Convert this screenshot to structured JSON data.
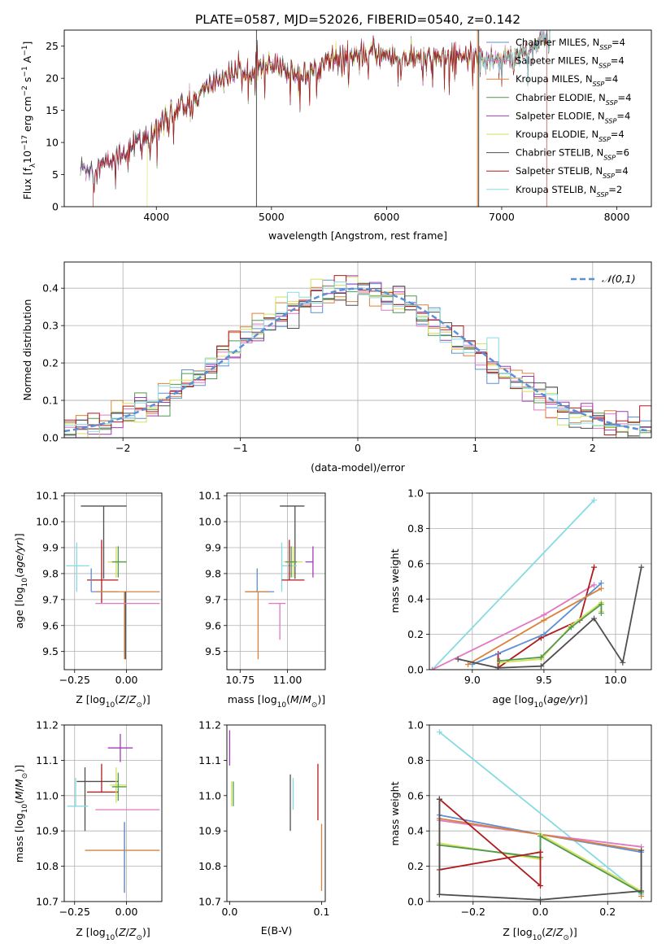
{
  "figure_title": "PLATE=0587, MJD=52026, FIBERID=0540, z=0.142",
  "palette": {
    "chabrier_miles": "#5b8fd6",
    "salpeter_miles": "#e377c2",
    "kroupa_miles": "#d9823b",
    "chabrier_elodie": "#4f9a4f",
    "salpeter_elodie": "#a03bb8",
    "kroupa_elodie": "#d6e05a",
    "chabrier_stelib": "#4f4f4f",
    "salpeter_stelib": "#b01c1c",
    "kroupa_stelib": "#85dbe3",
    "normal_curve": "#5b8fd6"
  },
  "chart_data": [
    {
      "type": "line",
      "id": "spectrum",
      "xlabel": "wavelength [Angstrom, rest frame]",
      "ylabel": "Flux [f_λ10^-17 erg cm^-2 s^-1 A^-1]",
      "xlim": [
        3200,
        8300
      ],
      "ylim": [
        0,
        27.5
      ],
      "xticks": [
        4000,
        5000,
        6000,
        7000,
        8000
      ],
      "yticks": [
        0,
        5,
        10,
        15,
        20,
        25
      ],
      "grid": false,
      "legend_position": "right",
      "series": [
        {
          "name": "Chabrier MILES, N_SSP=4",
          "key": "chabrier_miles"
        },
        {
          "name": "Salpeter MILES, N_SSP=4",
          "key": "salpeter_miles"
        },
        {
          "name": "Kroupa MILES, N_SSP=4",
          "key": "kroupa_miles"
        },
        {
          "name": "Chabrier ELODIE, N_SSP=4",
          "key": "chabrier_elodie"
        },
        {
          "name": "Salpeter ELODIE, N_SSP=4",
          "key": "salpeter_elodie"
        },
        {
          "name": "Kroupa ELODIE, N_SSP=4",
          "key": "kroupa_elodie"
        },
        {
          "name": "Chabrier STELIB, N_SSP=6",
          "key": "chabrier_stelib"
        },
        {
          "name": "Salpeter STELIB, N_SSP=4",
          "key": "salpeter_stelib"
        },
        {
          "name": "Kroupa STELIB, N_SSP=2",
          "key": "kroupa_stelib"
        }
      ],
      "spectrum_trend": {
        "x": [
          3350,
          3500,
          3650,
          3750,
          3850,
          3950,
          4000,
          4100,
          4300,
          4500,
          4700,
          4900,
          5100,
          5300,
          5500,
          5700,
          5900,
          6100,
          6300,
          6500,
          6700,
          6900,
          7100,
          7300,
          7400
        ],
        "y": [
          6.0,
          6.2,
          7.5,
          9.0,
          10.5,
          10.0,
          12.5,
          14.5,
          16.0,
          19.5,
          21.0,
          22.0,
          21.5,
          20.5,
          23.0,
          23.5,
          24.0,
          23.0,
          23.0,
          23.5,
          23.5,
          23.0,
          23.5,
          25.0,
          26.5
        ]
      },
      "model_starts": [
        {
          "key": "salpeter_stelib",
          "x": 3450
        },
        {
          "key": "kroupa_elodie",
          "x": 3920
        },
        {
          "key": "kroupa_miles",
          "x": 6790
        },
        {
          "key": "kroupa_stelib",
          "x": 6800
        }
      ],
      "model_ends": [
        {
          "key": "salpeter_stelib",
          "x": 7390
        }
      ],
      "vertical_lines": [
        {
          "key": "chabrier_stelib",
          "x": 4870,
          "top": 27.5
        },
        {
          "key": "chabrier_stelib",
          "x": 6800,
          "top": 27.5
        },
        {
          "key": "kroupa_miles",
          "x": 6790,
          "top": 27.5
        }
      ]
    },
    {
      "type": "histogram",
      "id": "residuals",
      "xlabel": "(data-model)/error",
      "ylabel": "Normed distribution",
      "xlim": [
        -2.5,
        2.5
      ],
      "ylim": [
        0,
        0.47
      ],
      "xticks": [
        -2,
        -1,
        0,
        1,
        2
      ],
      "yticks": [
        0.0,
        0.1,
        0.2,
        0.3,
        0.4
      ],
      "grid": true,
      "legend_position": "top-right",
      "normal_label": "𝒩(0,1)",
      "bin_width": 0.1
    },
    {
      "type": "scatter",
      "id": "age_vs_Z",
      "xlabel": "Z [log10(Z/Z⊙)]",
      "ylabel": "age [log10(age/yr)]",
      "xlim": [
        -0.3,
        0.17
      ],
      "ylim": [
        9.43,
        10.11
      ],
      "xticks": [
        -0.25,
        0.0
      ],
      "yticks": [
        9.5,
        9.6,
        9.7,
        9.8,
        9.9,
        10.0,
        10.1
      ],
      "grid": true,
      "points": [
        {
          "key": "chabrier_stelib",
          "x": -0.11,
          "y": 10.06,
          "xerr": [
            0.11,
            0.11
          ],
          "yerr": [
            0.28,
            0.0
          ]
        },
        {
          "key": "kroupa_stelib",
          "x": -0.24,
          "y": 9.83,
          "xerr": [
            0.05,
            0.06
          ],
          "yerr": [
            0.1,
            0.09
          ]
        },
        {
          "key": "salpeter_stelib",
          "x": -0.12,
          "y": 9.775,
          "xerr": [
            0.07,
            0.08
          ],
          "yerr": [
            0.09,
            0.155
          ]
        },
        {
          "key": "kroupa_elodie",
          "x": -0.05,
          "y": 9.845,
          "xerr": [
            0.04,
            0.05
          ],
          "yerr": [
            0.06,
            0.06
          ]
        },
        {
          "key": "chabrier_elodie",
          "x": -0.04,
          "y": 9.845,
          "xerr": [
            0.03,
            0.04
          ],
          "yerr": [
            0.06,
            0.06
          ]
        },
        {
          "key": "chabrier_miles",
          "x": -0.17,
          "y": 9.73,
          "xerr": [
            0.0,
            0.13
          ],
          "yerr": [
            0.0,
            0.09
          ]
        },
        {
          "key": "kroupa_miles",
          "x": -0.01,
          "y": 9.73,
          "xerr": [
            0.14,
            0.17
          ],
          "yerr": [
            0.26,
            0.0
          ]
        },
        {
          "key": "chabrier_stelib",
          "x": -0.005,
          "y": 9.73,
          "xerr": [
            0.0,
            0.0
          ],
          "yerr": [
            0.26,
            0.0
          ]
        },
        {
          "key": "salpeter_miles",
          "x": -0.01,
          "y": 9.685,
          "xerr": [
            0.14,
            0.17
          ],
          "yerr": [
            0.0,
            0.0
          ]
        }
      ]
    },
    {
      "type": "scatter",
      "id": "age_vs_mass",
      "xlabel": "mass [log10(M/M⊙)]",
      "ylabel": "",
      "xlim": [
        10.68,
        11.2
      ],
      "ylim": [
        9.43,
        10.11
      ],
      "xticks": [
        10.75,
        11.0
      ],
      "yticks": [
        9.5,
        9.6,
        9.7,
        9.8,
        9.9,
        10.0,
        10.1
      ],
      "grid": true,
      "points": [
        {
          "key": "chabrier_stelib",
          "x": 11.04,
          "y": 10.06,
          "xerr": [
            0.08,
            0.05
          ],
          "yerr": [
            0.28,
            0.0
          ]
        },
        {
          "key": "kroupa_stelib",
          "x": 10.97,
          "y": 9.83,
          "xerr": [
            0.0,
            0.08
          ],
          "yerr": [
            0.1,
            0.09
          ]
        },
        {
          "key": "salpeter_stelib",
          "x": 11.01,
          "y": 9.775,
          "xerr": [
            0.04,
            0.08
          ],
          "yerr": [
            0.0,
            0.155
          ]
        },
        {
          "key": "kroupa_elodie",
          "x": 11.03,
          "y": 9.845,
          "xerr": [
            0.05,
            0.05
          ],
          "yerr": [
            0.06,
            0.06
          ]
        },
        {
          "key": "chabrier_elodie",
          "x": 11.02,
          "y": 9.845,
          "xerr": [
            0.03,
            0.03
          ],
          "yerr": [
            0.06,
            0.06
          ]
        },
        {
          "key": "salpeter_elodie",
          "x": 11.135,
          "y": 9.845,
          "xerr": [
            0.04,
            0.0
          ],
          "yerr": [
            0.06,
            0.06
          ]
        },
        {
          "key": "chabrier_miles",
          "x": 10.84,
          "y": 9.73,
          "xerr": [
            0.06,
            0.09
          ],
          "yerr": [
            0.0,
            0.09
          ]
        },
        {
          "key": "kroupa_miles",
          "x": 10.845,
          "y": 9.73,
          "xerr": [
            0.07,
            0.06
          ],
          "yerr": [
            0.26,
            0.0
          ]
        },
        {
          "key": "salpeter_miles",
          "x": 10.96,
          "y": 9.685,
          "xerr": [
            0.06,
            0.03
          ],
          "yerr": [
            0.14,
            0.0
          ]
        }
      ]
    },
    {
      "type": "line",
      "id": "weight_vs_age",
      "xlabel": "age [log10(age/yr)]",
      "ylabel": "mass weight",
      "xlim": [
        8.7,
        10.25
      ],
      "ylim": [
        0,
        1.0
      ],
      "xticks": [
        9.0,
        9.5,
        10.0
      ],
      "yticks": [
        0.0,
        0.2,
        0.4,
        0.6,
        0.8,
        1.0
      ],
      "grid": true,
      "series": [
        {
          "key": "kroupa_stelib",
          "x": [
            8.72,
            9.85
          ],
          "y": [
            0.0,
            0.96
          ]
        },
        {
          "key": "salpeter_miles",
          "x": [
            8.72,
            9.5,
            9.85
          ],
          "y": [
            0.0,
            0.31,
            0.48
          ]
        },
        {
          "key": "salpeter_stelib",
          "x": [
            9.18,
            9.18,
            9.48,
            9.75,
            9.85
          ],
          "y": [
            0.09,
            0.01,
            0.18,
            0.28,
            0.58
          ]
        },
        {
          "key": "chabrier_miles",
          "x": [
            9.0,
            9.5,
            9.9
          ],
          "y": [
            0.03,
            0.2,
            0.49
          ]
        },
        {
          "key": "kroupa_miles",
          "x": [
            8.97,
            9.5,
            9.9
          ],
          "y": [
            0.03,
            0.28,
            0.46
          ]
        },
        {
          "key": "chabrier_stelib",
          "x": [
            8.9,
            9.18,
            9.48,
            9.85,
            10.05,
            10.18
          ],
          "y": [
            0.06,
            0.01,
            0.02,
            0.29,
            0.04,
            0.58
          ]
        },
        {
          "key": "kroupa_elodie",
          "x": [
            9.19,
            9.48,
            9.69,
            9.9,
            9.9
          ],
          "y": [
            0.04,
            0.06,
            0.25,
            0.38,
            0.33
          ]
        },
        {
          "key": "chabrier_elodie",
          "x": [
            9.19,
            9.48,
            9.69,
            9.9,
            9.9
          ],
          "y": [
            0.05,
            0.07,
            0.24,
            0.37,
            0.32
          ]
        }
      ]
    },
    {
      "type": "scatter",
      "id": "mass_vs_Z",
      "xlabel": "Z [log10(Z/Z⊙)]",
      "ylabel": "mass [log10(M/M⊙)]",
      "xlim": [
        -0.3,
        0.17
      ],
      "ylim": [
        10.7,
        11.2
      ],
      "xticks": [
        -0.25,
        0.0
      ],
      "yticks": [
        10.7,
        10.8,
        10.9,
        11.0,
        11.1,
        11.2
      ],
      "grid": true,
      "points": [
        {
          "key": "salpeter_elodie",
          "x": -0.03,
          "y": 11.135,
          "xerr": [
            0.06,
            0.06
          ],
          "yerr": [
            0.04,
            0.04
          ]
        },
        {
          "key": "chabrier_stelib",
          "x": -0.2,
          "y": 11.04,
          "xerr": [
            0.04,
            0.16
          ],
          "yerr": [
            0.14,
            0.04
          ]
        },
        {
          "key": "salpeter_stelib",
          "x": -0.12,
          "y": 11.01,
          "xerr": [
            0.07,
            0.08
          ],
          "yerr": [
            0.0,
            0.08
          ]
        },
        {
          "key": "kroupa_elodie",
          "x": -0.05,
          "y": 11.03,
          "xerr": [
            0.03,
            0.05
          ],
          "yerr": [
            0.05,
            0.05
          ]
        },
        {
          "key": "chabrier_elodie",
          "x": -0.04,
          "y": 11.025,
          "xerr": [
            0.03,
            0.04
          ],
          "yerr": [
            0.04,
            0.04
          ]
        },
        {
          "key": "kroupa_stelib",
          "x": -0.245,
          "y": 10.97,
          "xerr": [
            0.04,
            0.06
          ],
          "yerr": [
            0.0,
            0.08
          ]
        },
        {
          "key": "salpeter_miles",
          "x": -0.01,
          "y": 10.96,
          "xerr": [
            0.14,
            0.17
          ],
          "yerr": [
            0.0,
            0.0
          ]
        },
        {
          "key": "kroupa_miles",
          "x": -0.01,
          "y": 10.845,
          "xerr": [
            0.19,
            0.17
          ],
          "yerr": [
            0.12,
            0.08
          ]
        },
        {
          "key": "chabrier_miles",
          "x": -0.01,
          "y": 10.845,
          "xerr": [
            0.0,
            0.0
          ],
          "yerr": [
            0.12,
            0.08
          ]
        }
      ]
    },
    {
      "type": "scatter",
      "id": "mass_vs_ebv",
      "xlabel": "E(B-V)",
      "ylabel": "",
      "xlim": [
        -0.003,
        0.104
      ],
      "ylim": [
        10.7,
        11.2
      ],
      "xticks": [
        0.0,
        0.1
      ],
      "yticks": [
        10.7,
        10.8,
        10.9,
        11.0,
        11.1,
        11.2
      ],
      "grid": false,
      "points": [
        {
          "key": "salpeter_elodie",
          "x": 0.0,
          "y": 11.135,
          "xerr": [
            0.0,
            0.0
          ],
          "yerr": [
            0.05,
            0.05
          ]
        },
        {
          "key": "kroupa_elodie",
          "x": 0.002,
          "y": 11.0,
          "xerr": [
            0.0,
            0.0
          ],
          "yerr": [
            0.03,
            0.04
          ]
        },
        {
          "key": "chabrier_elodie",
          "x": 0.004,
          "y": 11.0,
          "xerr": [
            0.0,
            0.0
          ],
          "yerr": [
            0.03,
            0.04
          ]
        },
        {
          "key": "chabrier_stelib",
          "x": 0.066,
          "y": 10.95,
          "xerr": [
            0.0,
            0.0
          ],
          "yerr": [
            0.05,
            0.11
          ]
        },
        {
          "key": "kroupa_stelib",
          "x": 0.069,
          "y": 11.0,
          "xerr": [
            0.0,
            0.0
          ],
          "yerr": [
            0.04,
            0.05
          ]
        },
        {
          "key": "salpeter_stelib",
          "x": 0.096,
          "y": 11.0,
          "xerr": [
            0.0,
            0.0
          ],
          "yerr": [
            0.07,
            0.09
          ]
        },
        {
          "key": "kroupa_miles",
          "x": 0.1,
          "y": 10.83,
          "xerr": [
            0.0,
            0.0
          ],
          "yerr": [
            0.1,
            0.09
          ]
        }
      ]
    },
    {
      "type": "line",
      "id": "weight_vs_Z",
      "xlabel": "Z [log10(Z/Z⊙)]",
      "ylabel": "mass weight",
      "xlim": [
        -0.33,
        0.33
      ],
      "ylim": [
        0,
        1.0
      ],
      "xticks": [
        -0.2,
        0.0,
        0.2
      ],
      "yticks": [
        0.0,
        0.2,
        0.4,
        0.6,
        0.8,
        1.0
      ],
      "grid": true,
      "series": [
        {
          "key": "kroupa_stelib",
          "x": [
            -0.3,
            0.3
          ],
          "y": [
            0.96,
            0.04
          ]
        },
        {
          "key": "salpeter_miles",
          "x": [
            -0.3,
            0.0,
            0.3
          ],
          "y": [
            0.46,
            0.38,
            0.31
          ]
        },
        {
          "key": "chabrier_miles",
          "x": [
            -0.3,
            0.0,
            0.3
          ],
          "y": [
            0.49,
            0.38,
            0.28
          ]
        },
        {
          "key": "kroupa_miles",
          "x": [
            -0.3,
            0.0,
            0.3,
            0.3
          ],
          "y": [
            0.47,
            0.38,
            0.29,
            0.03
          ]
        },
        {
          "key": "kroupa_elodie",
          "x": [
            -0.3,
            0.0,
            0.0,
            0.3
          ],
          "y": [
            0.33,
            0.24,
            0.38,
            0.06
          ]
        },
        {
          "key": "chabrier_elodie",
          "x": [
            -0.3,
            0.0,
            0.0,
            0.3
          ],
          "y": [
            0.32,
            0.25,
            0.37,
            0.05
          ]
        },
        {
          "key": "salpeter_stelib",
          "x": [
            -0.3,
            0.0,
            0.0,
            -0.3,
            -0.3
          ],
          "y": [
            0.58,
            0.09,
            0.28,
            0.18,
            0.58
          ]
        },
        {
          "key": "chabrier_stelib",
          "x": [
            -0.3,
            -0.3,
            0.0,
            0.3,
            0.3
          ],
          "y": [
            0.58,
            0.04,
            0.01,
            0.06,
            0.29
          ]
        }
      ]
    }
  ]
}
